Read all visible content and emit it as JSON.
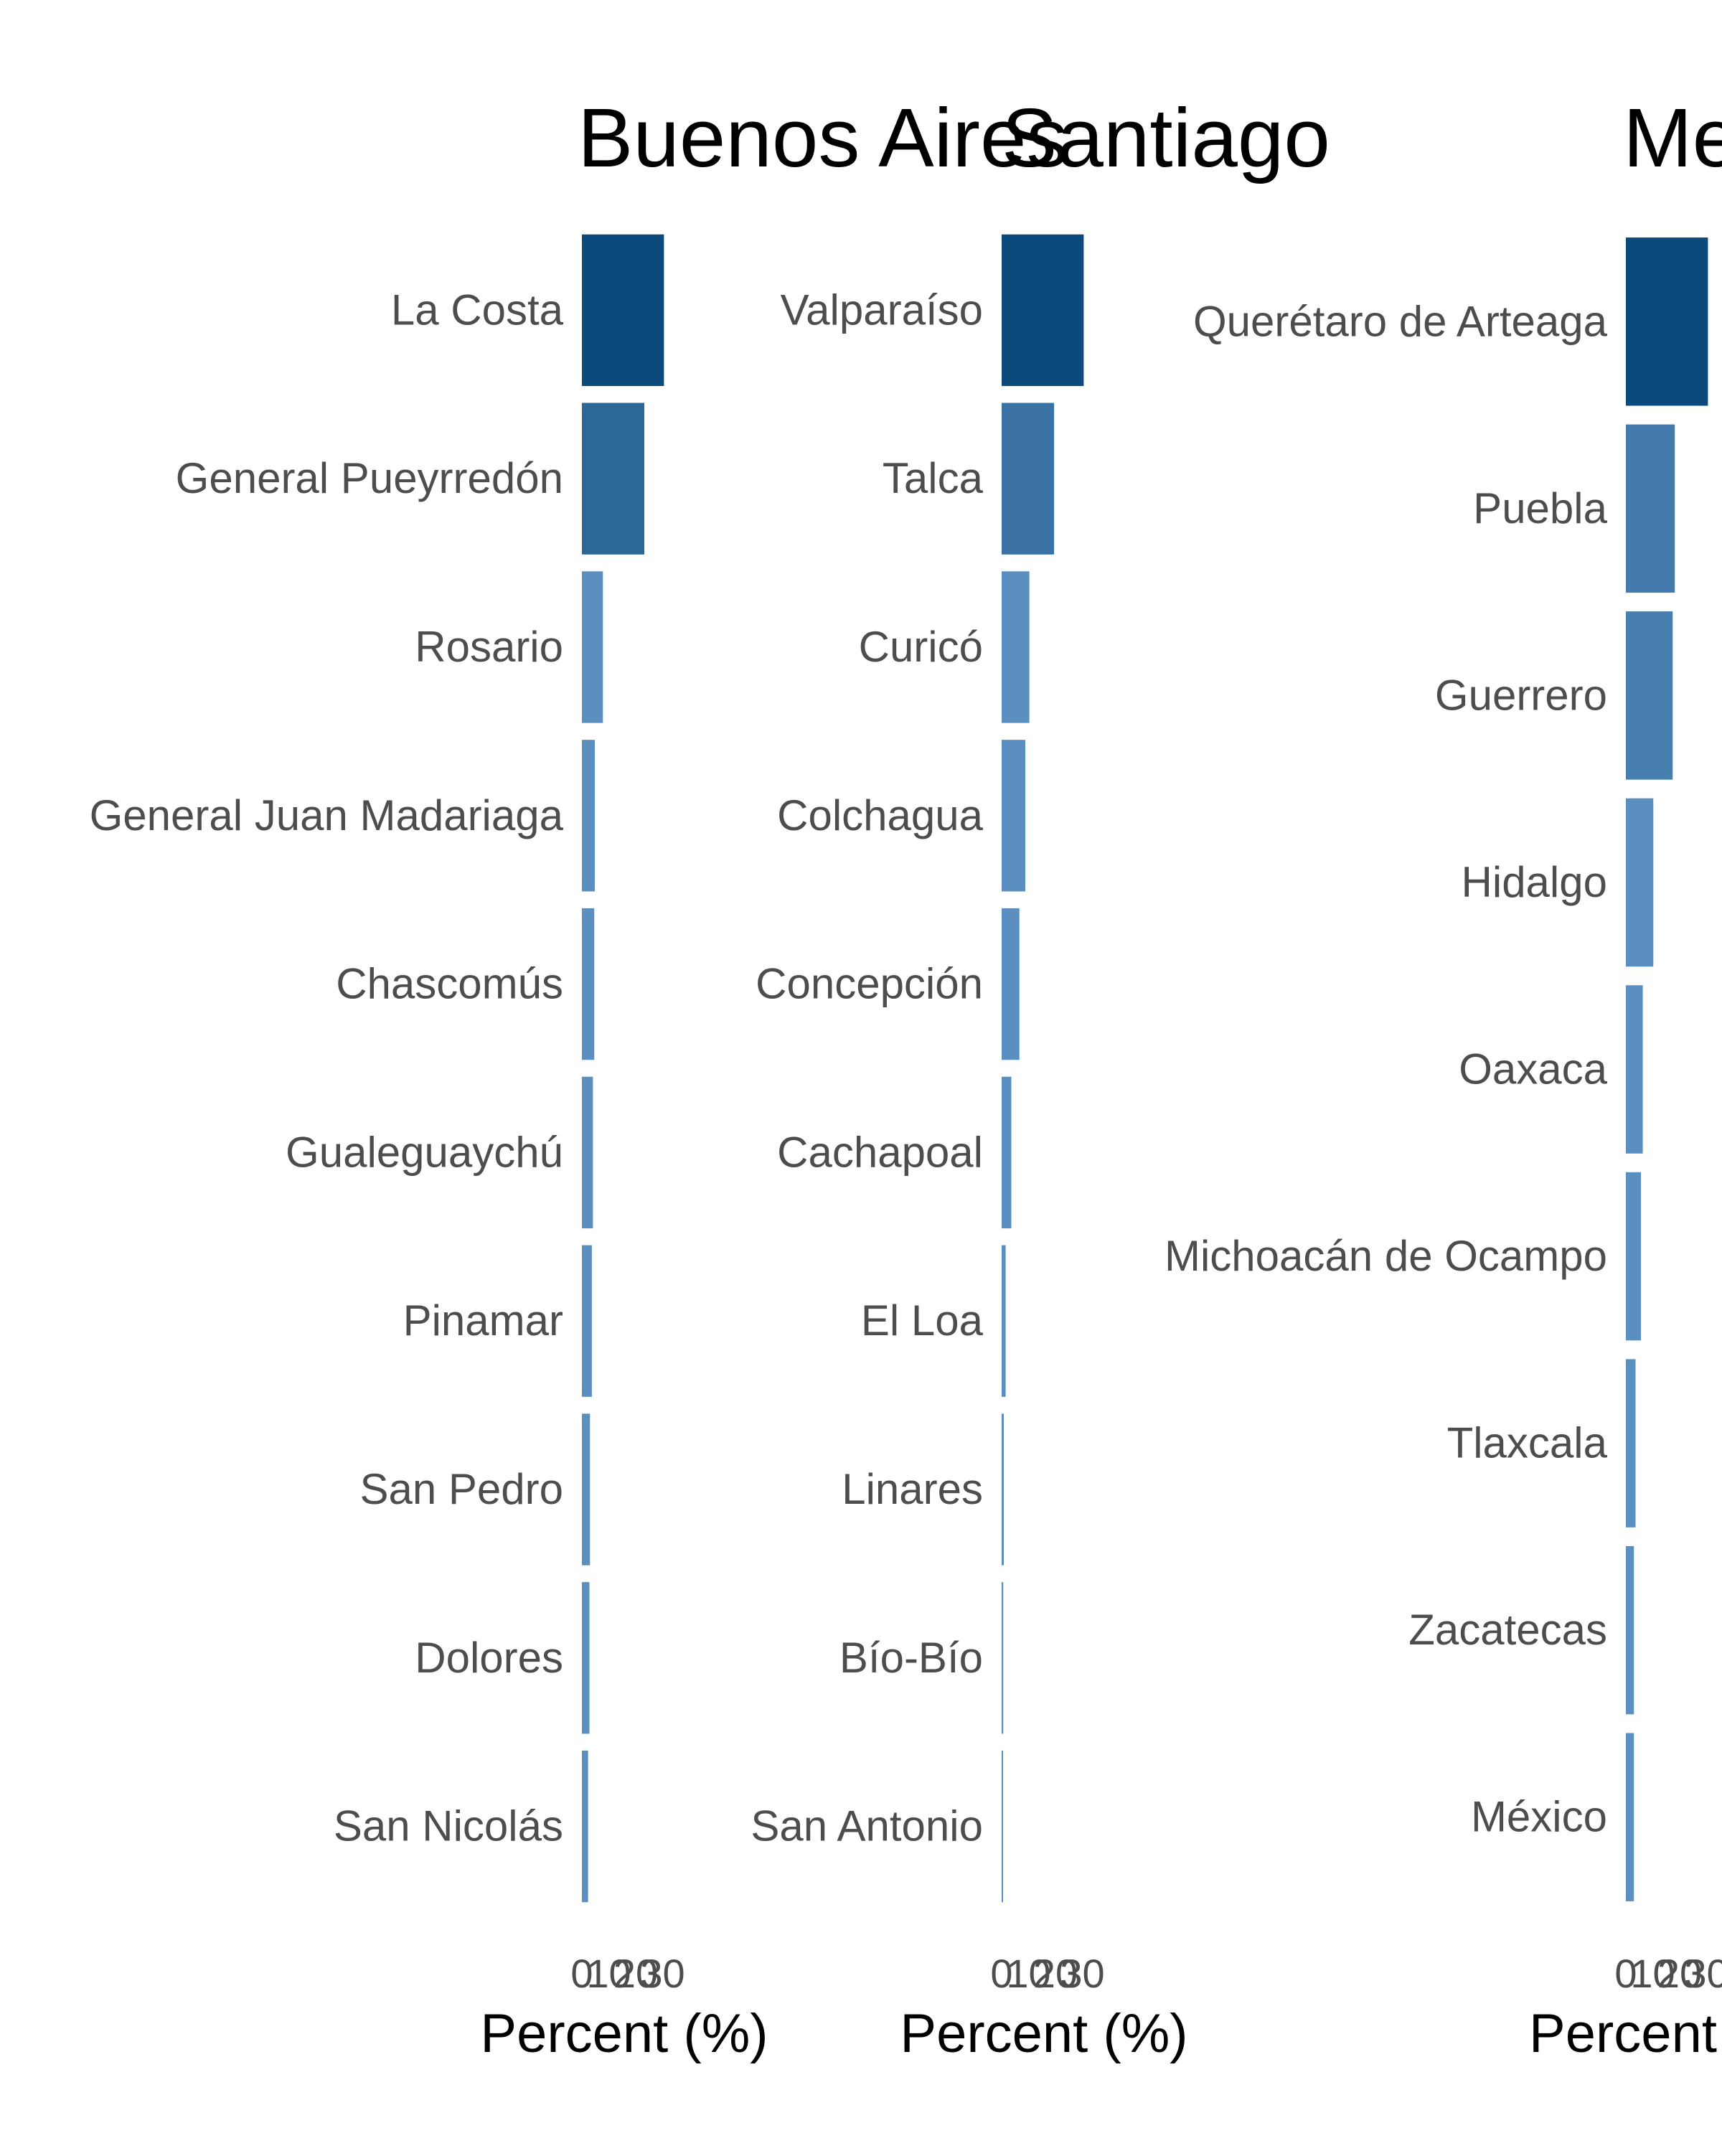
{
  "chart_data": [
    {
      "type": "bar",
      "orientation": "horizontal",
      "title": "Buenos Aires",
      "xlabel": "Percent (%)",
      "ylabel": "",
      "xlim": [
        0,
        30
      ],
      "xticks": [
        "0",
        "10",
        "20",
        "30"
      ],
      "grid": false,
      "legend": "none",
      "categories": [
        "La Costa",
        "General Pueyrredón",
        "Rosario",
        "General Juan Madariaga",
        "Chascomús",
        "Gualeguaychú",
        "Pinamar",
        "San Pedro",
        "Dolores",
        "San Nicolás"
      ],
      "values": [
        30.5,
        23.2,
        7.8,
        4.8,
        4.6,
        4.1,
        3.7,
        3.0,
        2.8,
        2.3
      ]
    },
    {
      "type": "bar",
      "orientation": "horizontal",
      "title": "Santiago",
      "xlabel": "Percent (%)",
      "ylabel": "",
      "xlim": [
        0,
        30
      ],
      "xticks": [
        "0",
        "10",
        "20",
        "30"
      ],
      "grid": false,
      "legend": "none",
      "categories": [
        "Valparaíso",
        "Talca",
        "Curicó",
        "Colchagua",
        "Concepción",
        "Cachapoal",
        "El Loa",
        "Linares",
        "Bío-Bío",
        "San Antonio"
      ],
      "values": [
        30.5,
        19.5,
        10.3,
        8.8,
        6.6,
        3.6,
        1.5,
        0.8,
        0.6,
        0.5
      ]
    },
    {
      "type": "bar",
      "orientation": "horizontal",
      "title": "Me",
      "xlabel": "Percent",
      "ylabel": "",
      "xlim": [
        0,
        30
      ],
      "xticks": [
        "0",
        "10",
        "20",
        "30"
      ],
      "grid": false,
      "legend": "none",
      "categories": [
        "Querétaro de Arteaga",
        "Puebla",
        "Guerrero",
        "Hidalgo",
        "Oaxaca",
        "Michoacán de Ocampo",
        "Tlaxcala",
        "Zacatecas",
        "México"
      ],
      "values": [
        30.5,
        18.2,
        17.4,
        10.2,
        6.3,
        5.6,
        3.6,
        3.0,
        3.0
      ]
    }
  ],
  "colors": {
    "bar_dark": "#0b4a7a",
    "bar_light": "#5a8fc0",
    "text_dark": "#000000",
    "text_muted": "#4d4d4d"
  }
}
